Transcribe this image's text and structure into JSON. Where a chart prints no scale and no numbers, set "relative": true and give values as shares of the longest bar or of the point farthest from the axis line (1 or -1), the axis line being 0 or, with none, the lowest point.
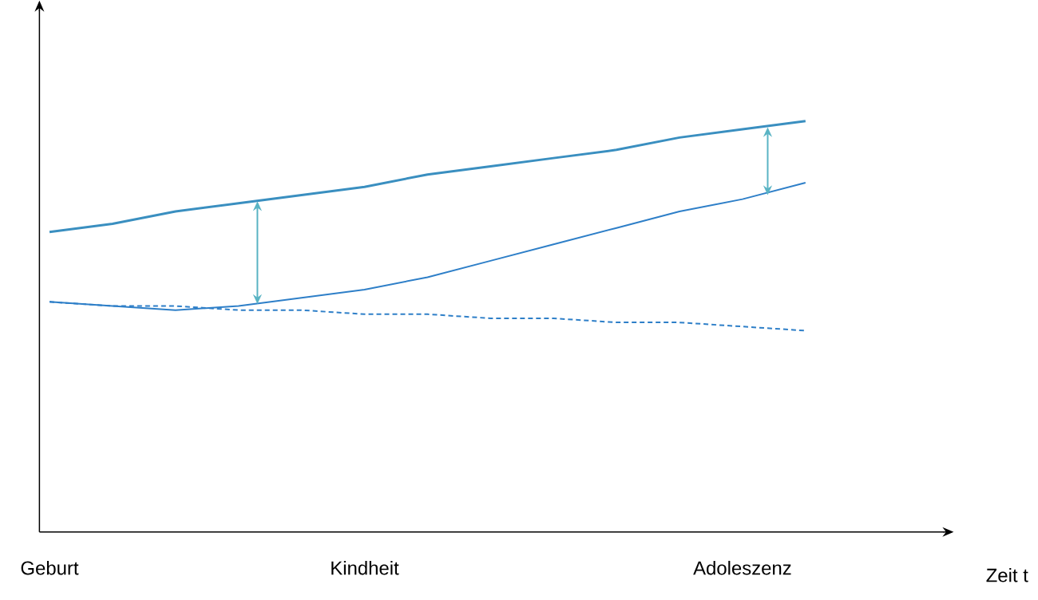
{
  "chart_data": {
    "type": "line",
    "relative": true,
    "annotations": [
      "Zeit t"
    ],
    "categories": [
      "Geburt",
      null,
      null,
      null,
      null,
      "Kindheit",
      null,
      null,
      null,
      null,
      null,
      "Adoleszenz",
      null
    ],
    "series": [
      {
        "color": "#3a8fc0",
        "line_style": "solid",
        "values": [
          0.73,
          0.75,
          0.78,
          0.8,
          0.82,
          0.84,
          0.87,
          0.89,
          0.91,
          0.93,
          0.96,
          0.98,
          1.0
        ]
      },
      {
        "color": "#2e7fc8",
        "line_style": "solid",
        "values": [
          0.56,
          0.55,
          0.54,
          0.55,
          0.57,
          0.59,
          0.62,
          0.66,
          0.7,
          0.74,
          0.78,
          0.81,
          0.85
        ]
      },
      {
        "color": "#2e7fc8",
        "line_style": "dashed",
        "values": [
          0.56,
          0.55,
          0.55,
          0.54,
          0.54,
          0.53,
          0.53,
          0.52,
          0.52,
          0.51,
          0.51,
          0.5,
          0.49
        ]
      }
    ]
  }
}
